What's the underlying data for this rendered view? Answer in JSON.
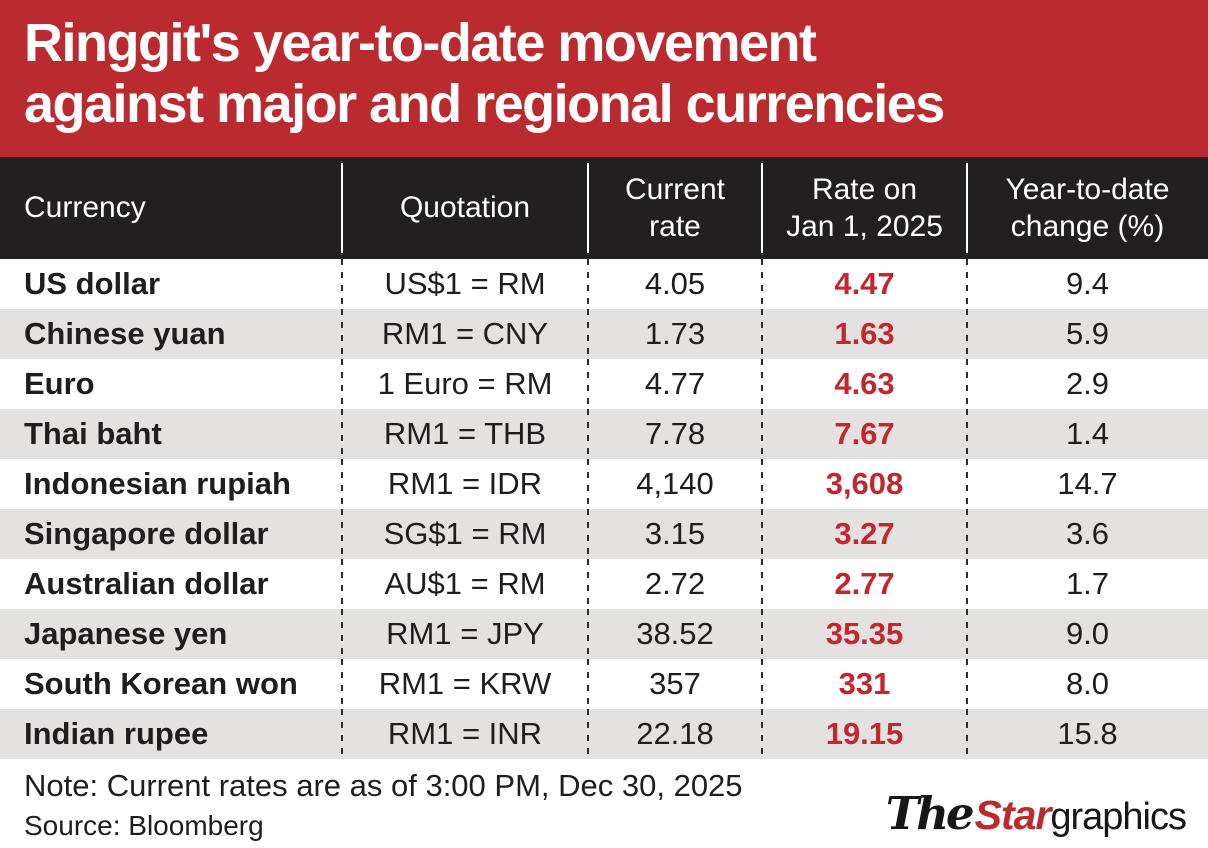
{
  "title": {
    "line1": "Ringgit's year-to-date movement",
    "line2": "against major and regional currencies"
  },
  "table": {
    "headers": [
      "Currency",
      "Quotation",
      "Current\nrate",
      "Rate on\nJan 1, 2025",
      "Year-to-date\nchange (%)"
    ],
    "rows": [
      {
        "currency": "US dollar",
        "quotation": "US$1 = RM",
        "current_rate": "4.05",
        "jan1_rate": "4.47",
        "ytd_change": "9.4"
      },
      {
        "currency": "Chinese yuan",
        "quotation": "RM1 = CNY",
        "current_rate": "1.73",
        "jan1_rate": "1.63",
        "ytd_change": "5.9"
      },
      {
        "currency": "Euro",
        "quotation": "1 Euro = RM",
        "current_rate": "4.77",
        "jan1_rate": "4.63",
        "ytd_change": "2.9"
      },
      {
        "currency": "Thai baht",
        "quotation": "RM1 = THB",
        "current_rate": "7.78",
        "jan1_rate": "7.67",
        "ytd_change": "1.4"
      },
      {
        "currency": "Indonesian rupiah",
        "quotation": "RM1 = IDR",
        "current_rate": "4,140",
        "jan1_rate": "3,608",
        "ytd_change": "14.7"
      },
      {
        "currency": "Singapore dollar",
        "quotation": "SG$1 = RM",
        "current_rate": "3.15",
        "jan1_rate": "3.27",
        "ytd_change": "3.6"
      },
      {
        "currency": "Australian dollar",
        "quotation": "AU$1 = RM",
        "current_rate": "2.72",
        "jan1_rate": "2.77",
        "ytd_change": "1.7"
      },
      {
        "currency": "Japanese yen",
        "quotation": "RM1 = JPY",
        "current_rate": "38.52",
        "jan1_rate": "35.35",
        "ytd_change": "9.0"
      },
      {
        "currency": "South Korean won",
        "quotation": "RM1 = KRW",
        "current_rate": "357",
        "jan1_rate": "331",
        "ytd_change": "8.0"
      },
      {
        "currency": "Indian rupee",
        "quotation": "RM1 = INR",
        "current_rate": "22.18",
        "jan1_rate": "19.15",
        "ytd_change": "15.8"
      }
    ]
  },
  "chart_data": {
    "type": "table",
    "title": "Ringgit's year-to-date movement against major and regional currencies",
    "columns": [
      "Currency",
      "Quotation",
      "Current rate",
      "Rate on Jan 1, 2025",
      "Year-to-date change (%)"
    ],
    "rows": [
      [
        "US dollar",
        "US$1 = RM",
        4.05,
        4.47,
        9.4
      ],
      [
        "Chinese yuan",
        "RM1 = CNY",
        1.73,
        1.63,
        5.9
      ],
      [
        "Euro",
        "1 Euro = RM",
        4.77,
        4.63,
        2.9
      ],
      [
        "Thai baht",
        "RM1 = THB",
        7.78,
        7.67,
        1.4
      ],
      [
        "Indonesian rupiah",
        "RM1 = IDR",
        4140,
        3608,
        14.7
      ],
      [
        "Singapore dollar",
        "SG$1 = RM",
        3.15,
        3.27,
        3.6
      ],
      [
        "Australian dollar",
        "AU$1 = RM",
        2.72,
        2.77,
        1.7
      ],
      [
        "Japanese yen",
        "RM1 = JPY",
        38.52,
        35.35,
        9.0
      ],
      [
        "South Korean won",
        "RM1 = KRW",
        357,
        331,
        8.0
      ],
      [
        "Indian rupee",
        "RM1 = INR",
        22.18,
        19.15,
        15.8
      ]
    ],
    "note": "Note: Current rates are as of 3:00 PM, Dec 30, 2025",
    "source": "Source: Bloomberg"
  },
  "footer": {
    "note": "Note: Current rates are as of 3:00 PM, Dec 30, 2025",
    "source": "Source: Bloomberg"
  },
  "logo": {
    "the": "The",
    "star": "Star",
    "graphics": "graphics"
  },
  "colors": {
    "banner_red": "#BB2A2F",
    "value_red": "#C1272E",
    "header_black": "#221F20",
    "row_alt_gray": "#E3E2E0",
    "text_black": "#1F1D1E"
  }
}
